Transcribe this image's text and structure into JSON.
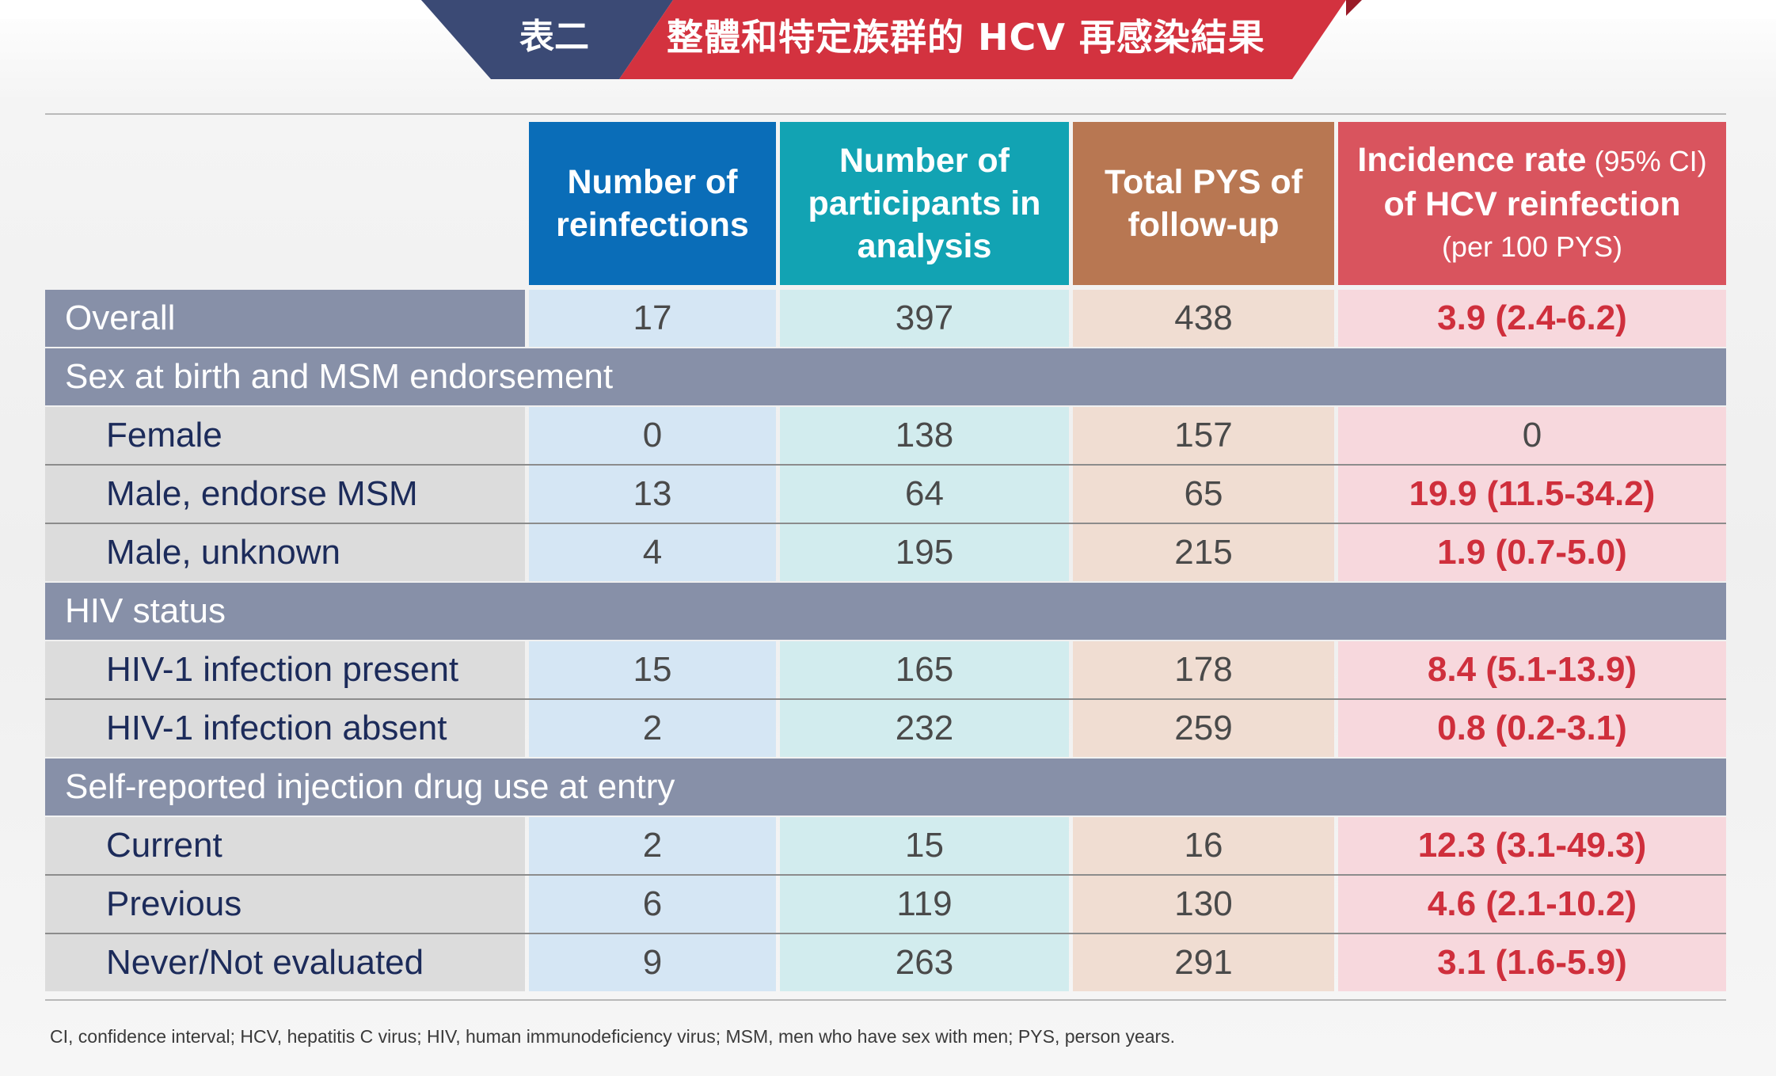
{
  "banner": {
    "label": "表二",
    "title": "整體和特定族群的 HCV 再感染結果",
    "colors": {
      "navy": "#3b4a75",
      "red": "#d3323f",
      "dark_red": "#9a1b28"
    }
  },
  "table": {
    "headers": {
      "c1": {
        "line1": "Number of",
        "line2": "reinfections"
      },
      "c2": {
        "line1": "Number of",
        "line2": "participants in",
        "line3": "analysis"
      },
      "c3": {
        "line1": "Total PYS of",
        "line2": "follow-up"
      },
      "c4": {
        "line1_bold": "Incidence rate",
        "line1_light": " (95% CI)",
        "line2": "of HCV reinfection",
        "line3": "(per 100 PYS)"
      }
    },
    "overall": {
      "label": "Overall",
      "reinfections": "17",
      "participants": "397",
      "pys": "438",
      "rate": "3.9 (2.4-6.2)"
    },
    "sections": [
      {
        "title": "Sex at birth and MSM endorsement",
        "rows": [
          {
            "label": "Female",
            "reinfections": "0",
            "participants": "138",
            "pys": "157",
            "rate": "0"
          },
          {
            "label": "Male, endorse MSM",
            "reinfections": "13",
            "participants": "64",
            "pys": "65",
            "rate": "19.9 (11.5-34.2)"
          },
          {
            "label": "Male, unknown",
            "reinfections": "4",
            "participants": "195",
            "pys": "215",
            "rate": "1.9 (0.7-5.0)"
          }
        ]
      },
      {
        "title": "HIV status",
        "rows": [
          {
            "label": "HIV-1 infection present",
            "reinfections": "15",
            "participants": "165",
            "pys": "178",
            "rate": "8.4 (5.1-13.9)"
          },
          {
            "label": "HIV-1 infection absent",
            "reinfections": "2",
            "participants": "232",
            "pys": "259",
            "rate": "0.8 (0.2-3.1)"
          }
        ]
      },
      {
        "title": "Self-reported injection drug use at entry",
        "rows": [
          {
            "label": "Current",
            "reinfections": "2",
            "participants": "15",
            "pys": "16",
            "rate": "12.3 (3.1-49.3)"
          },
          {
            "label": "Previous",
            "reinfections": "6",
            "participants": "119",
            "pys": "130",
            "rate": "4.6 (2.1-10.2)"
          },
          {
            "label": "Never/Not evaluated",
            "reinfections": "9",
            "participants": "263",
            "pys": "291",
            "rate": "3.1 (1.6-5.9)"
          }
        ]
      }
    ]
  },
  "footnote": "CI, confidence interval; HCV, hepatitis C virus; HIV, human immunodeficiency virus; MSM, men who have sex with men; PYS, person years."
}
